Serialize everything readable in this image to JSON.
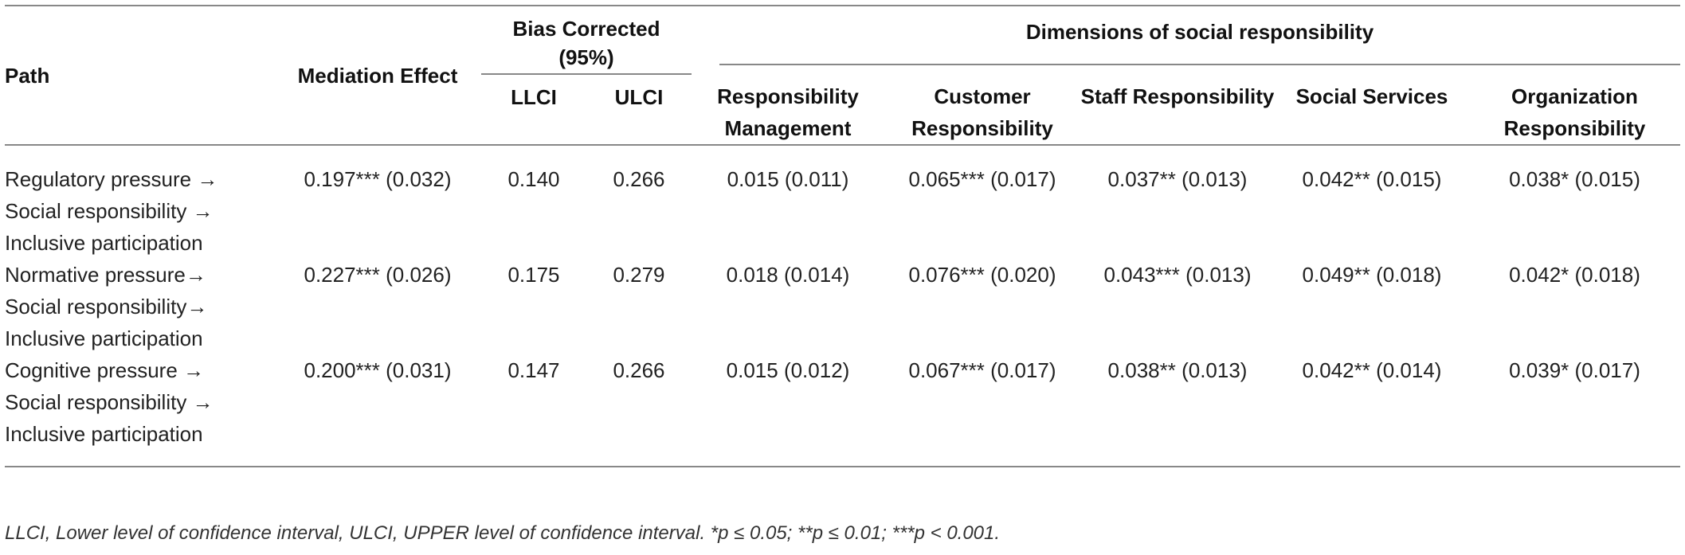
{
  "headers": {
    "path": "Path",
    "mediation_effect": "Mediation Effect",
    "bias_corrected": "Bias Corrected (95%)",
    "llci": "LLCI",
    "ulci": "ULCI",
    "dimensions": "Dimensions of social responsibility",
    "dim_cols": [
      "Responsibility Management",
      "Customer Responsibility",
      "Staff Responsibility",
      "Social Services",
      "Organization Responsibility"
    ]
  },
  "rows": [
    {
      "path_lines": [
        "Regulatory pressure →",
        "Social responsibility →",
        "Inclusive participation"
      ],
      "mediation_effect": "0.197*** (0.032)",
      "llci": "0.140",
      "ulci": "0.266",
      "dims": [
        "0.015 (0.011)",
        "0.065*** (0.017)",
        "0.037** (0.013)",
        "0.042** (0.015)",
        "0.038* (0.015)"
      ]
    },
    {
      "path_lines": [
        "Normative pressure→",
        "Social responsibility→",
        "Inclusive participation"
      ],
      "mediation_effect": "0.227*** (0.026)",
      "llci": "0.175",
      "ulci": "0.279",
      "dims": [
        "0.018 (0.014)",
        "0.076*** (0.020)",
        "0.043*** (0.013)",
        "0.049** (0.018)",
        "0.042* (0.018)"
      ]
    },
    {
      "path_lines": [
        "Cognitive pressure →",
        "Social responsibility →",
        "Inclusive participation"
      ],
      "mediation_effect": "0.200*** (0.031)",
      "llci": "0.147",
      "ulci": "0.266",
      "dims": [
        "0.015 (0.012)",
        "0.067*** (0.017)",
        "0.038** (0.013)",
        "0.042** (0.014)",
        "0.039* (0.017)"
      ]
    }
  ],
  "footnote": "LLCI, Lower level of confidence interval, ULCI, UPPER level of confidence interval. *p ≤ 0.05; **p ≤ 0.01; ***p < 0.001."
}
